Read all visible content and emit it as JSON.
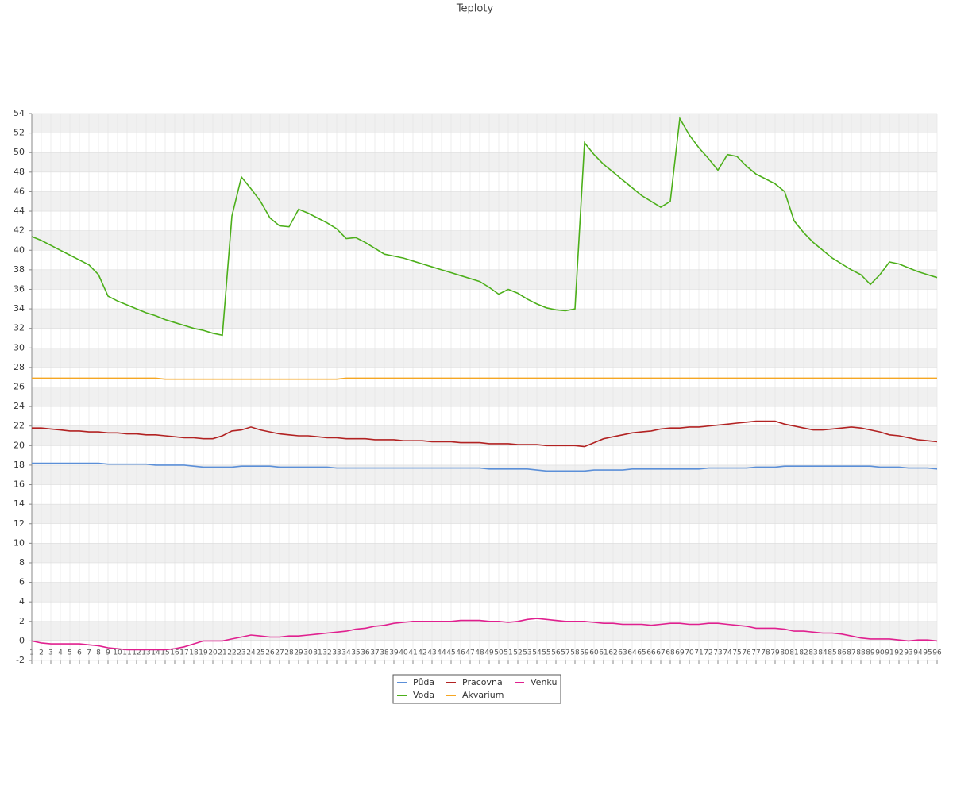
{
  "chart_data": {
    "type": "line",
    "title": "Teploty",
    "categories": [
      "1",
      "2",
      "3",
      "4",
      "5",
      "6",
      "7",
      "8",
      "9",
      "10",
      "11",
      "12",
      "13",
      "14",
      "15",
      "16",
      "17",
      "18",
      "19",
      "20",
      "21",
      "22",
      "23",
      "24",
      "25",
      "26",
      "27",
      "28",
      "29",
      "30",
      "31",
      "32",
      "33",
      "34",
      "35",
      "36",
      "37",
      "38",
      "39",
      "40",
      "41",
      "42",
      "43",
      "44",
      "45",
      "46",
      "47",
      "48",
      "49",
      "50",
      "51",
      "52",
      "53",
      "54",
      "55",
      "56",
      "57",
      "58",
      "59",
      "60",
      "61",
      "62",
      "63",
      "64",
      "65",
      "66",
      "67",
      "68",
      "69",
      "70",
      "71",
      "72",
      "73",
      "74",
      "75",
      "76",
      "77",
      "78",
      "79",
      "80",
      "81",
      "82",
      "83",
      "84",
      "85",
      "86",
      "87",
      "88",
      "89",
      "90",
      "91",
      "92",
      "93",
      "94",
      "95",
      "96"
    ],
    "series": [
      {
        "name": "Půda",
        "color": "#5b8fd8",
        "values": [
          18.2,
          18.2,
          18.2,
          18.2,
          18.2,
          18.2,
          18.2,
          18.2,
          18.1,
          18.1,
          18.1,
          18.1,
          18.1,
          18.0,
          18.0,
          18.0,
          18.0,
          17.9,
          17.8,
          17.8,
          17.8,
          17.8,
          17.9,
          17.9,
          17.9,
          17.9,
          17.8,
          17.8,
          17.8,
          17.8,
          17.8,
          17.8,
          17.7,
          17.7,
          17.7,
          17.7,
          17.7,
          17.7,
          17.7,
          17.7,
          17.7,
          17.7,
          17.7,
          17.7,
          17.7,
          17.7,
          17.7,
          17.7,
          17.6,
          17.6,
          17.6,
          17.6,
          17.6,
          17.5,
          17.4,
          17.4,
          17.4,
          17.4,
          17.4,
          17.5,
          17.5,
          17.5,
          17.5,
          17.6,
          17.6,
          17.6,
          17.6,
          17.6,
          17.6,
          17.6,
          17.6,
          17.7,
          17.7,
          17.7,
          17.7,
          17.7,
          17.8,
          17.8,
          17.8,
          17.9,
          17.9,
          17.9,
          17.9,
          17.9,
          17.9,
          17.9,
          17.9,
          17.9,
          17.9,
          17.8,
          17.8,
          17.8,
          17.7,
          17.7,
          17.7,
          17.6
        ]
      },
      {
        "name": "Voda",
        "color": "#4caf1a",
        "values": [
          41.4,
          41.0,
          40.5,
          40.0,
          39.5,
          39.0,
          38.5,
          37.5,
          35.3,
          34.8,
          34.4,
          34.0,
          33.6,
          33.3,
          32.9,
          32.6,
          32.3,
          32.0,
          31.8,
          31.5,
          31.3,
          43.5,
          47.5,
          46.3,
          45.0,
          43.3,
          42.5,
          42.4,
          44.2,
          43.8,
          43.3,
          42.8,
          42.2,
          41.2,
          41.3,
          40.8,
          40.2,
          39.6,
          39.4,
          39.2,
          38.9,
          38.6,
          38.3,
          38.0,
          37.7,
          37.4,
          37.1,
          36.8,
          36.2,
          35.5,
          36.0,
          35.6,
          35.0,
          34.5,
          34.1,
          33.9,
          33.8,
          34.0,
          51.0,
          49.8,
          48.8,
          48.0,
          47.2,
          46.4,
          45.6,
          45.0,
          44.4,
          45.0,
          53.5,
          51.8,
          50.5,
          49.4,
          48.2,
          49.8,
          49.6,
          48.6,
          47.8,
          47.3,
          46.8,
          46.0,
          43.0,
          41.8,
          40.8,
          40.0,
          39.2,
          38.6,
          38.0,
          37.5,
          36.5,
          37.5,
          38.8,
          38.6,
          38.2,
          37.8,
          37.5,
          37.2
        ]
      },
      {
        "name": "Pracovna",
        "color": "#b22222",
        "values": [
          21.8,
          21.8,
          21.7,
          21.6,
          21.5,
          21.5,
          21.4,
          21.4,
          21.3,
          21.3,
          21.2,
          21.2,
          21.1,
          21.1,
          21.0,
          20.9,
          20.8,
          20.8,
          20.7,
          20.7,
          21.0,
          21.5,
          21.6,
          21.9,
          21.6,
          21.4,
          21.2,
          21.1,
          21.0,
          21.0,
          20.9,
          20.8,
          20.8,
          20.7,
          20.7,
          20.7,
          20.6,
          20.6,
          20.6,
          20.5,
          20.5,
          20.5,
          20.4,
          20.4,
          20.4,
          20.3,
          20.3,
          20.3,
          20.2,
          20.2,
          20.2,
          20.1,
          20.1,
          20.1,
          20.0,
          20.0,
          20.0,
          20.0,
          19.9,
          20.3,
          20.7,
          20.9,
          21.1,
          21.3,
          21.4,
          21.5,
          21.7,
          21.8,
          21.8,
          21.9,
          21.9,
          22.0,
          22.1,
          22.2,
          22.3,
          22.4,
          22.5,
          22.5,
          22.5,
          22.2,
          22.0,
          21.8,
          21.6,
          21.6,
          21.7,
          21.8,
          21.9,
          21.8,
          21.6,
          21.4,
          21.1,
          21.0,
          20.8,
          20.6,
          20.5,
          20.4
        ]
      },
      {
        "name": "Akvarium",
        "color": "#f5a623",
        "values": [
          26.9,
          26.9,
          26.9,
          26.9,
          26.9,
          26.9,
          26.9,
          26.9,
          26.9,
          26.9,
          26.9,
          26.9,
          26.9,
          26.9,
          26.8,
          26.8,
          26.8,
          26.8,
          26.8,
          26.8,
          26.8,
          26.8,
          26.8,
          26.8,
          26.8,
          26.8,
          26.8,
          26.8,
          26.8,
          26.8,
          26.8,
          26.8,
          26.8,
          26.9,
          26.9,
          26.9,
          26.9,
          26.9,
          26.9,
          26.9,
          26.9,
          26.9,
          26.9,
          26.9,
          26.9,
          26.9,
          26.9,
          26.9,
          26.9,
          26.9,
          26.9,
          26.9,
          26.9,
          26.9,
          26.9,
          26.9,
          26.9,
          26.9,
          26.9,
          26.9,
          26.9,
          26.9,
          26.9,
          26.9,
          26.9,
          26.9,
          26.9,
          26.9,
          26.9,
          26.9,
          26.9,
          26.9,
          26.9,
          26.9,
          26.9,
          26.9,
          26.9,
          26.9,
          26.9,
          26.9,
          26.9,
          26.9,
          26.9,
          26.9,
          26.9,
          26.9,
          26.9,
          26.9,
          26.9,
          26.9,
          26.9,
          26.9,
          26.9,
          26.9,
          26.9,
          26.9
        ]
      },
      {
        "name": "Venku",
        "color": "#e0208f",
        "values": [
          0.0,
          -0.2,
          -0.3,
          -0.3,
          -0.3,
          -0.3,
          -0.4,
          -0.5,
          -0.7,
          -0.8,
          -0.9,
          -0.9,
          -0.9,
          -0.9,
          -0.9,
          -0.8,
          -0.6,
          -0.3,
          0.0,
          0.0,
          0.0,
          0.2,
          0.4,
          0.6,
          0.5,
          0.4,
          0.4,
          0.5,
          0.5,
          0.6,
          0.7,
          0.8,
          0.9,
          1.0,
          1.2,
          1.3,
          1.5,
          1.6,
          1.8,
          1.9,
          2.0,
          2.0,
          2.0,
          2.0,
          2.0,
          2.1,
          2.1,
          2.1,
          2.0,
          2.0,
          1.9,
          2.0,
          2.2,
          2.3,
          2.2,
          2.1,
          2.0,
          2.0,
          2.0,
          1.9,
          1.8,
          1.8,
          1.7,
          1.7,
          1.7,
          1.6,
          1.7,
          1.8,
          1.8,
          1.7,
          1.7,
          1.8,
          1.8,
          1.7,
          1.6,
          1.5,
          1.3,
          1.3,
          1.3,
          1.2,
          1.0,
          1.0,
          0.9,
          0.8,
          0.8,
          0.7,
          0.5,
          0.3,
          0.2,
          0.2,
          0.2,
          0.1,
          0.0,
          0.1,
          0.1,
          0.0
        ]
      }
    ],
    "ylim": [
      -2,
      54
    ],
    "yticks": [
      -2,
      0,
      2,
      4,
      6,
      8,
      10,
      12,
      14,
      16,
      18,
      20,
      22,
      24,
      26,
      28,
      30,
      32,
      34,
      36,
      38,
      40,
      42,
      44,
      46,
      48,
      50,
      52,
      54
    ],
    "grid": true,
    "legend": "bottom"
  }
}
